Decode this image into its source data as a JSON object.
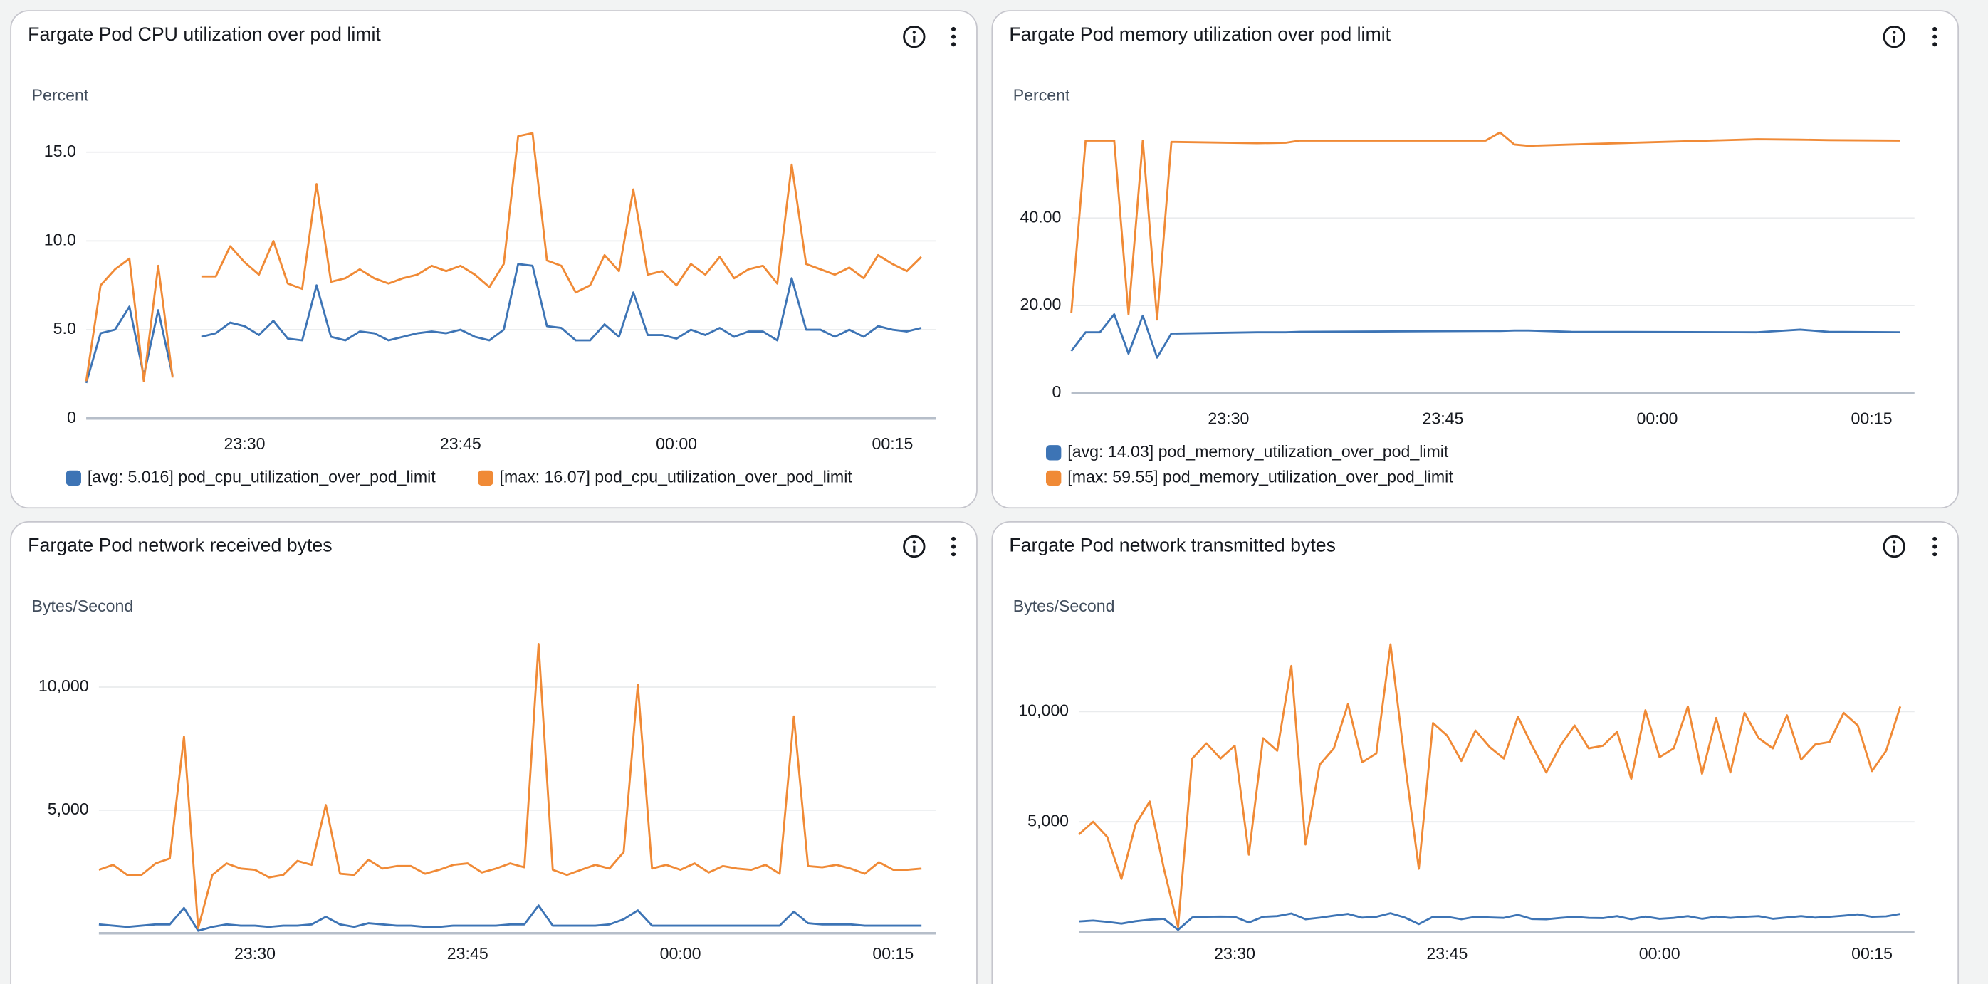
{
  "chart_data": [
    {
      "type": "line",
      "title": "Fargate Pod CPU utilization over pod limit",
      "y_label": "Percent",
      "x": [
        "23:19",
        "23:20",
        "23:21",
        "23:22",
        "23:23",
        "23:24",
        "23:25",
        "23:26",
        "23:27",
        "23:28",
        "23:29",
        "23:30",
        "23:31",
        "23:32",
        "23:33",
        "23:34",
        "23:35",
        "23:36",
        "23:37",
        "23:38",
        "23:39",
        "23:40",
        "23:41",
        "23:42",
        "23:43",
        "23:44",
        "23:45",
        "23:46",
        "23:47",
        "23:48",
        "23:49",
        "23:50",
        "23:51",
        "23:52",
        "23:53",
        "23:54",
        "23:55",
        "23:56",
        "23:57",
        "23:58",
        "23:59",
        "00:00",
        "00:01",
        "00:02",
        "00:03",
        "00:04",
        "00:05",
        "00:06",
        "00:07",
        "00:08",
        "00:09",
        "00:10",
        "00:11",
        "00:12",
        "00:13",
        "00:14",
        "00:15",
        "00:16",
        "00:17"
      ],
      "xlim": [
        "23:19",
        "00:18"
      ],
      "xticks": [
        "23:30",
        "23:45",
        "00:00",
        "00:15"
      ],
      "ylim": [
        0,
        16.5
      ],
      "yticks": [
        0,
        {
          "value": 5,
          "label": "5.0"
        },
        {
          "value": 10,
          "label": "10.0"
        },
        {
          "value": 15,
          "label": "15.0"
        }
      ],
      "grid": true,
      "legend": "bottom",
      "series": [
        {
          "name": "[avg: 5.016] pod_cpu_utilization_over_pod_limit",
          "color": "#3d74b5",
          "values": [
            2.0,
            4.8,
            5.0,
            6.3,
            2.4,
            6.1,
            2.4,
            null,
            4.6,
            4.8,
            5.4,
            5.2,
            4.7,
            5.5,
            4.5,
            4.4,
            7.5,
            4.6,
            4.4,
            4.9,
            4.8,
            4.4,
            4.6,
            4.8,
            4.9,
            4.8,
            5.0,
            4.6,
            4.4,
            5.0,
            8.7,
            8.6,
            5.2,
            5.1,
            4.4,
            4.4,
            5.3,
            4.6,
            7.1,
            4.7,
            4.7,
            4.5,
            5.0,
            4.7,
            5.1,
            4.6,
            4.9,
            4.9,
            4.4,
            7.9,
            5.0,
            5.0,
            4.6,
            5.0,
            4.6,
            5.2,
            5.0,
            4.9,
            5.1
          ]
        },
        {
          "name": "[max: 16.07] pod_cpu_utilization_over_pod_limit",
          "color": "#f08a36",
          "values": [
            2.1,
            7.5,
            8.4,
            9.0,
            2.1,
            8.6,
            2.3,
            null,
            8.0,
            8.0,
            9.7,
            8.8,
            8.1,
            10.0,
            7.6,
            7.3,
            13.2,
            7.7,
            7.9,
            8.4,
            7.9,
            7.6,
            7.9,
            8.1,
            8.6,
            8.3,
            8.6,
            8.1,
            7.4,
            8.7,
            15.9,
            16.07,
            8.9,
            8.6,
            7.1,
            7.5,
            9.2,
            8.3,
            12.9,
            8.1,
            8.3,
            7.5,
            8.7,
            8.1,
            9.1,
            7.9,
            8.4,
            8.6,
            7.6,
            14.3,
            8.7,
            8.4,
            8.1,
            8.5,
            7.9,
            9.2,
            8.7,
            8.3,
            9.1
          ]
        }
      ]
    },
    {
      "type": "line",
      "title": "Fargate Pod memory utilization over pod limit",
      "y_label": "Percent",
      "x": [
        "23:19",
        "23:20",
        "23:21",
        "23:22",
        "23:23",
        "23:24",
        "23:25",
        "23:26",
        "23:32",
        "23:34",
        "23:35",
        "23:48",
        "23:49",
        "23:50",
        "23:51",
        "23:54",
        "00:07",
        "00:10",
        "00:12",
        "00:17"
      ],
      "xlim": [
        "23:19",
        "00:18"
      ],
      "xticks": [
        "23:30",
        "23:45",
        "00:00",
        "00:15"
      ],
      "ylim": [
        0,
        62
      ],
      "yticks": [
        0,
        {
          "value": 20,
          "label": "20.00"
        },
        {
          "value": 40,
          "label": "40.00"
        }
      ],
      "grid": true,
      "legend": "bottom",
      "series": [
        {
          "name": "[avg: 14.03] pod_memory_utilization_over_pod_limit",
          "color": "#3d74b5",
          "values": [
            9.6,
            13.9,
            13.9,
            18.0,
            9.0,
            17.7,
            8.1,
            13.6,
            13.9,
            13.9,
            14.0,
            14.2,
            14.2,
            14.3,
            14.3,
            14.0,
            13.9,
            14.5,
            14.0,
            13.9
          ]
        },
        {
          "name": "[max: 59.55] pod_memory_utilization_over_pod_limit",
          "color": "#f08a36",
          "values": [
            18.3,
            57.7,
            57.7,
            57.7,
            18.0,
            57.7,
            16.8,
            57.4,
            57.1,
            57.2,
            57.7,
            57.7,
            59.55,
            56.8,
            56.5,
            56.8,
            58.0,
            57.9,
            57.8,
            57.7
          ]
        }
      ]
    },
    {
      "type": "line",
      "title": "Fargate Pod network received bytes",
      "y_label": "Bytes/Second",
      "x": [
        "23:19",
        "23:20",
        "23:21",
        "23:22",
        "23:23",
        "23:24",
        "23:25",
        "23:26",
        "23:27",
        "23:28",
        "23:29",
        "23:30",
        "23:31",
        "23:32",
        "23:33",
        "23:34",
        "23:35",
        "23:36",
        "23:37",
        "23:38",
        "23:39",
        "23:40",
        "23:41",
        "23:42",
        "23:43",
        "23:44",
        "23:45",
        "23:46",
        "23:47",
        "23:48",
        "23:49",
        "23:50",
        "23:51",
        "23:52",
        "23:53",
        "23:54",
        "23:55",
        "23:56",
        "23:57",
        "23:58",
        "23:59",
        "00:00",
        "00:01",
        "00:02",
        "00:03",
        "00:04",
        "00:05",
        "00:06",
        "00:07",
        "00:08",
        "00:09",
        "00:10",
        "00:11",
        "00:12",
        "00:13",
        "00:14",
        "00:15",
        "00:16",
        "00:17"
      ],
      "xlim": [
        "23:19",
        "00:18"
      ],
      "xticks": [
        "23:30",
        "23:45",
        "00:00",
        "00:15"
      ],
      "ylim": [
        0,
        12000
      ],
      "yticks": [
        {
          "value": 5000,
          "label": "5,000"
        },
        {
          "value": 10000,
          "label": "10,000"
        }
      ],
      "grid": true,
      "series": [
        {
          "color": "#3d74b5",
          "values": [
            360,
            310,
            260,
            310,
            360,
            360,
            1030,
            100,
            260,
            360,
            310,
            310,
            260,
            310,
            310,
            360,
            670,
            360,
            260,
            410,
            360,
            310,
            310,
            260,
            260,
            310,
            310,
            310,
            310,
            360,
            360,
            1130,
            310,
            310,
            310,
            310,
            360,
            570,
            930,
            310,
            310,
            310,
            310,
            310,
            310,
            310,
            310,
            310,
            310,
            880,
            410,
            360,
            360,
            360,
            310,
            310,
            310,
            310,
            310
          ]
        },
        {
          "color": "#f08a36",
          "values": [
            2580,
            2780,
            2370,
            2370,
            2840,
            3040,
            7990,
            210,
            2370,
            2840,
            2630,
            2580,
            2270,
            2370,
            2940,
            2780,
            5210,
            2420,
            2370,
            2990,
            2630,
            2730,
            2730,
            2420,
            2580,
            2780,
            2840,
            2470,
            2630,
            2840,
            2680,
            11750,
            2580,
            2370,
            2580,
            2780,
            2630,
            3300,
            10100,
            2630,
            2780,
            2580,
            2840,
            2470,
            2730,
            2630,
            2580,
            2780,
            2420,
            8810,
            2730,
            2680,
            2780,
            2630,
            2420,
            2890,
            2580,
            2580,
            2630
          ]
        }
      ]
    },
    {
      "type": "line",
      "title": "Fargate Pod network transmitted bytes",
      "y_label": "Bytes/Second",
      "x": [
        "23:19",
        "23:20",
        "23:21",
        "23:22",
        "23:23",
        "23:24",
        "23:25",
        "23:26",
        "23:27",
        "23:28",
        "23:29",
        "23:30",
        "23:31",
        "23:32",
        "23:33",
        "23:34",
        "23:35",
        "23:36",
        "23:37",
        "23:38",
        "23:39",
        "23:40",
        "23:41",
        "23:42",
        "23:43",
        "23:44",
        "23:45",
        "23:46",
        "23:47",
        "23:48",
        "23:49",
        "23:50",
        "23:51",
        "23:52",
        "23:53",
        "23:54",
        "23:55",
        "23:56",
        "23:57",
        "23:58",
        "23:59",
        "00:00",
        "00:01",
        "00:02",
        "00:03",
        "00:04",
        "00:05",
        "00:06",
        "00:07",
        "00:08",
        "00:09",
        "00:10",
        "00:11",
        "00:12",
        "00:13",
        "00:14",
        "00:15",
        "00:16",
        "00:17"
      ],
      "xlim": [
        "23:19",
        "00:18"
      ],
      "xticks": [
        "23:30",
        "23:45",
        "00:00",
        "00:15"
      ],
      "ylim": [
        0,
        13000
      ],
      "yticks": [
        {
          "value": 5000,
          "label": "5,000"
        },
        {
          "value": 10000,
          "label": "10,000"
        }
      ],
      "grid": true,
      "series": [
        {
          "color": "#3d74b5",
          "values": [
            480,
            520,
            460,
            380,
            490,
            560,
            600,
            100,
            660,
            690,
            700,
            690,
            430,
            690,
            720,
            840,
            580,
            650,
            740,
            820,
            650,
            690,
            850,
            660,
            360,
            690,
            690,
            580,
            690,
            660,
            640,
            780,
            590,
            580,
            640,
            690,
            640,
            630,
            720,
            580,
            700,
            600,
            640,
            720,
            600,
            700,
            640,
            690,
            720,
            600,
            660,
            720,
            650,
            690,
            740,
            800,
            690,
            710,
            820
          ]
        },
        {
          "color": "#f08a36",
          "values": [
            4430,
            5000,
            4310,
            2410,
            4890,
            5920,
            2870,
            230,
            7870,
            8560,
            7870,
            8450,
            3510,
            8790,
            8220,
            12070,
            3970,
            7590,
            8330,
            10340,
            7700,
            8100,
            13050,
            7760,
            2870,
            9480,
            8910,
            7760,
            9140,
            8390,
            7870,
            9770,
            8450,
            7240,
            8450,
            9370,
            8330,
            8450,
            9080,
            6950,
            10060,
            7930,
            8330,
            10230,
            7180,
            9710,
            7240,
            9940,
            8790,
            8330,
            9830,
            7820,
            8510,
            8620,
            9940,
            9370,
            7300,
            8220,
            10230
          ]
        }
      ]
    }
  ]
}
